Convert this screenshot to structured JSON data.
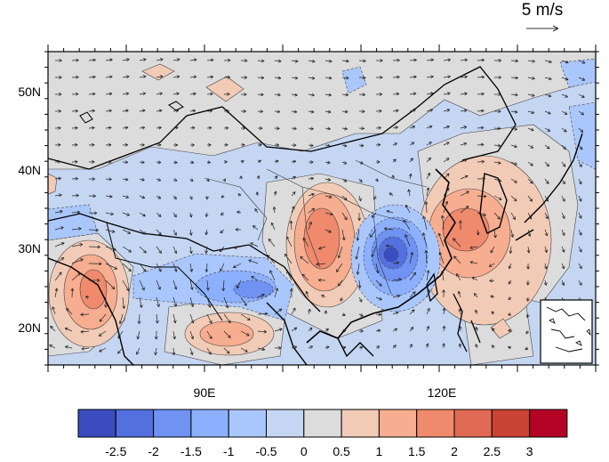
{
  "reference_vector": {
    "label": "5 m/s"
  },
  "axes": {
    "lat_ticks": [
      "50N",
      "40N",
      "30N",
      "20N"
    ],
    "lon_ticks": [
      "90E",
      "120E"
    ]
  },
  "colorbar": {
    "labels": [
      "-2.5",
      "-2",
      "-1.5",
      "-1",
      "-0.5",
      "0",
      "0.5",
      "1",
      "1.5",
      "2",
      "2.5",
      "3"
    ],
    "colors": [
      "#3b4cc0",
      "#5470de",
      "#6f92f3",
      "#8db0fe",
      "#aac7fd",
      "#c5d6f2",
      "#dddcdc",
      "#f2cbb7",
      "#f7ad90",
      "#f08a6c",
      "#e06a53",
      "#cb4335",
      "#b40426"
    ]
  },
  "chart_data": {
    "type": "map",
    "lon_range": [
      70,
      140
    ],
    "lat_range": [
      15,
      55
    ],
    "lon_ticks": [
      90,
      120
    ],
    "lat_ticks": [
      50,
      40,
      30,
      20
    ],
    "anomaly_centers": [
      {
        "lon": 113,
        "lat": 29,
        "value": -2.5
      },
      {
        "lon": 98,
        "lat": 23,
        "value": -1.5
      },
      {
        "lon": 106,
        "lat": 31,
        "value": 1.5
      },
      {
        "lon": 122,
        "lat": 32,
        "value": 2
      },
      {
        "lon": 74,
        "lat": 24,
        "value": 1.5
      },
      {
        "lon": 89,
        "lat": 20,
        "value": 1.5
      },
      {
        "lon": 93,
        "lat": 50,
        "value": 1
      },
      {
        "lon": 82,
        "lat": 52,
        "value": 0.5
      },
      {
        "lon": 125,
        "lat": 20,
        "value": 0.5
      }
    ]
  }
}
